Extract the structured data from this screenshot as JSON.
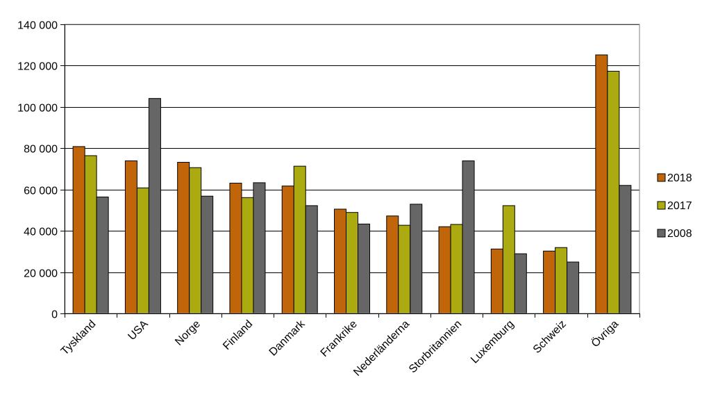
{
  "chart_data": {
    "type": "bar",
    "categories": [
      "Tyskland",
      "USA",
      "Norge",
      "Finland",
      "Danmark",
      "Frankrike",
      "Nederländerna",
      "Storbritannien",
      "Luxemburg",
      "Schweiz",
      "Övriga"
    ],
    "series": [
      {
        "name": "2018",
        "color": "#C0650A",
        "values": [
          80800,
          73900,
          73200,
          63100,
          61700,
          50500,
          47200,
          42000,
          31200,
          30200,
          125200
        ]
      },
      {
        "name": "2017",
        "color": "#ABAB11",
        "values": [
          76400,
          60800,
          70600,
          56100,
          71300,
          48900,
          42700,
          43100,
          52200,
          31900,
          117300
        ]
      },
      {
        "name": "2008",
        "color": "#666666",
        "values": [
          56400,
          104100,
          56800,
          63300,
          52200,
          43300,
          52900,
          73900,
          28900,
          24900,
          62000
        ]
      }
    ],
    "ylim": [
      0,
      140000
    ],
    "yticks": [
      0,
      20000,
      40000,
      60000,
      80000,
      100000,
      120000,
      140000
    ],
    "ytick_labels": [
      "0",
      "20 000",
      "40 000",
      "60 000",
      "80 000",
      "100 000",
      "120 000",
      "140 000"
    ],
    "grid": true,
    "legend_position": "right",
    "title": "",
    "xlabel": "",
    "ylabel": ""
  }
}
